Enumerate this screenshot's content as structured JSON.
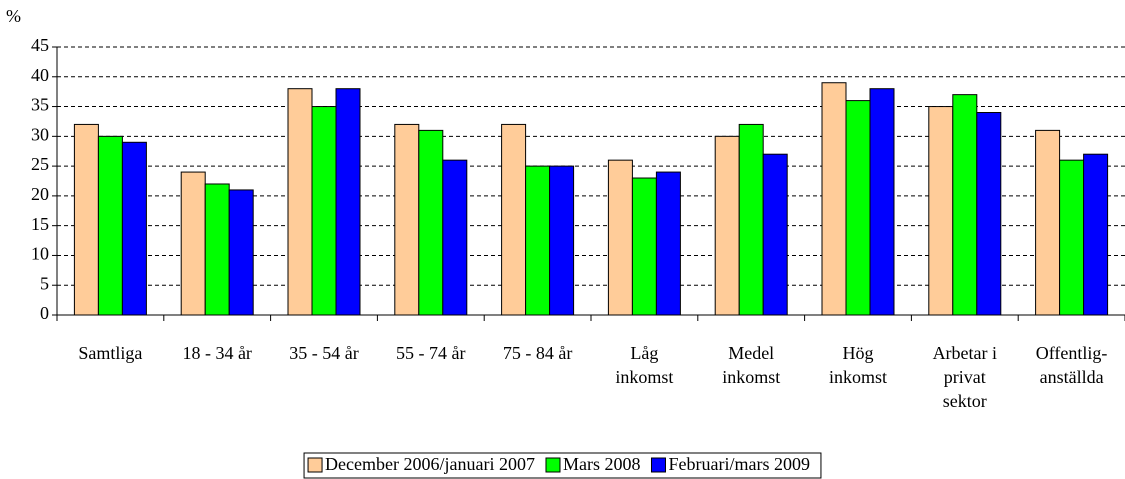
{
  "chart_data": {
    "type": "bar",
    "y_label": "%",
    "categories": [
      "Samtliga",
      "18 - 34 år",
      "35 - 54 år",
      "55 - 74 år",
      "75 - 84 år",
      "Låg\ninkomst",
      "Medel\ninkomst",
      "Hög\ninkomst",
      "Arbetar i\nprivat\nsektor",
      "Offentlig-\nanställda"
    ],
    "series": [
      {
        "name": "December 2006/januari 2007",
        "color": "#FFCC99",
        "values": [
          32,
          24,
          38,
          32,
          32,
          26,
          30,
          39,
          35,
          31
        ]
      },
      {
        "name": "Mars 2008",
        "color": "#00FF00",
        "values": [
          30,
          22,
          35,
          31,
          25,
          23,
          32,
          36,
          37,
          26
        ]
      },
      {
        "name": "Februari/mars 2009",
        "color": "#0000FF",
        "values": [
          29,
          21,
          38,
          26,
          25,
          24,
          27,
          38,
          34,
          27
        ]
      }
    ],
    "ylim": [
      0,
      45
    ],
    "yticks": [
      0,
      5,
      10,
      15,
      20,
      25,
      30,
      35,
      40,
      45
    ],
    "grid": true,
    "legend": "bottom"
  }
}
